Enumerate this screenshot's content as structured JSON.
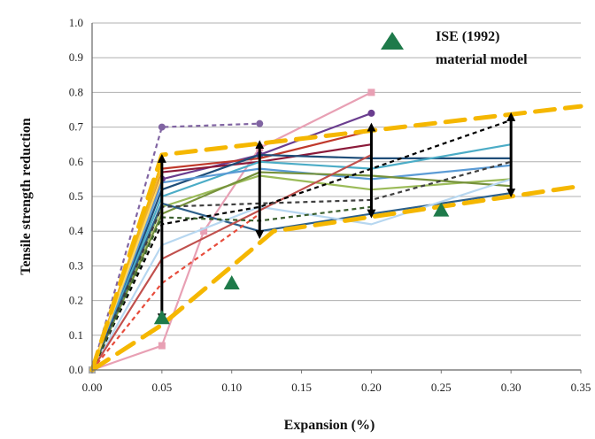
{
  "chart_data": {
    "type": "line",
    "xlabel": "Expansion (%)",
    "ylabel": "Tensile strength reduction",
    "xlim": [
      0,
      0.35
    ],
    "ylim": [
      0,
      1.0
    ],
    "x_ticks": [
      "0.00",
      "0.05",
      "0.10",
      "0.15",
      "0.20",
      "0.25",
      "0.30",
      "0.35"
    ],
    "y_ticks": [
      "0.0",
      "0.1",
      "0.2",
      "0.3",
      "0.4",
      "0.5",
      "0.6",
      "0.7",
      "0.8",
      "0.9",
      "1.0"
    ],
    "grid": "horizontal",
    "legend": {
      "position": "top-right",
      "entries": [
        {
          "marker": "triangle",
          "color": "#1e7a4a",
          "label_lines": [
            "ISE (1992)",
            "material model"
          ]
        }
      ]
    },
    "series": [
      {
        "color": "#8064a2",
        "style": "dashed",
        "marker": "circle",
        "points": [
          [
            0,
            0
          ],
          [
            0.05,
            0.7
          ],
          [
            0.12,
            0.71
          ]
        ]
      },
      {
        "color": "#e8a0b4",
        "style": "solid",
        "marker": "square",
        "points": [
          [
            0,
            0
          ],
          [
            0.05,
            0.07
          ],
          [
            0.08,
            0.4
          ],
          [
            0.12,
            0.64
          ],
          [
            0.2,
            0.8
          ]
        ]
      },
      {
        "color": "#6a3d8f",
        "style": "solid",
        "marker": "circle",
        "points": [
          [
            0,
            0
          ],
          [
            0.05,
            0.55
          ],
          [
            0.12,
            0.62
          ],
          [
            0.2,
            0.74
          ]
        ]
      },
      {
        "color": "#c0392b",
        "style": "solid",
        "marker": "none",
        "points": [
          [
            0,
            0
          ],
          [
            0.05,
            0.58
          ],
          [
            0.12,
            0.61
          ],
          [
            0.2,
            0.69
          ]
        ]
      },
      {
        "color": "#8b1a3a",
        "style": "solid",
        "marker": "none",
        "points": [
          [
            0,
            0
          ],
          [
            0.05,
            0.57
          ],
          [
            0.12,
            0.6
          ],
          [
            0.2,
            0.65
          ]
        ]
      },
      {
        "color": "#1f4e79",
        "style": "solid",
        "marker": "none",
        "points": [
          [
            0,
            0
          ],
          [
            0.05,
            0.52
          ],
          [
            0.12,
            0.62
          ],
          [
            0.2,
            0.61
          ],
          [
            0.3,
            0.61
          ]
        ]
      },
      {
        "color": "#4bacc6",
        "style": "solid",
        "marker": "none",
        "points": [
          [
            0,
            0
          ],
          [
            0.05,
            0.5
          ],
          [
            0.12,
            0.6
          ],
          [
            0.2,
            0.58
          ],
          [
            0.3,
            0.65
          ]
        ]
      },
      {
        "color": "#5b9bd5",
        "style": "solid",
        "marker": "none",
        "points": [
          [
            0,
            0
          ],
          [
            0.05,
            0.54
          ],
          [
            0.12,
            0.58
          ],
          [
            0.2,
            0.55
          ],
          [
            0.3,
            0.59
          ]
        ]
      },
      {
        "color": "#9bbb59",
        "style": "solid",
        "marker": "none",
        "points": [
          [
            0,
            0
          ],
          [
            0.05,
            0.47
          ],
          [
            0.12,
            0.56
          ],
          [
            0.2,
            0.52
          ],
          [
            0.3,
            0.55
          ]
        ]
      },
      {
        "color": "#76923c",
        "style": "solid",
        "marker": "none",
        "points": [
          [
            0,
            0
          ],
          [
            0.05,
            0.45
          ],
          [
            0.12,
            0.57
          ],
          [
            0.2,
            0.56
          ],
          [
            0.3,
            0.53
          ]
        ]
      },
      {
        "color": "#2c5f8a",
        "style": "solid",
        "marker": "none",
        "points": [
          [
            0,
            0
          ],
          [
            0.05,
            0.48
          ],
          [
            0.12,
            0.4
          ],
          [
            0.2,
            0.45
          ],
          [
            0.3,
            0.51
          ]
        ]
      },
      {
        "color": "#b7d7f0",
        "style": "solid",
        "marker": "none",
        "points": [
          [
            0,
            0
          ],
          [
            0.05,
            0.36
          ],
          [
            0.12,
            0.47
          ],
          [
            0.2,
            0.42
          ],
          [
            0.3,
            0.55
          ]
        ]
      },
      {
        "color": "#c0504d",
        "style": "solid",
        "marker": "none",
        "points": [
          [
            0,
            0
          ],
          [
            0.05,
            0.32
          ],
          [
            0.12,
            0.46
          ],
          [
            0.2,
            0.62
          ]
        ]
      },
      {
        "color": "#e74c3c",
        "style": "dashed",
        "marker": "none",
        "points": [
          [
            0,
            0
          ],
          [
            0.05,
            0.25
          ],
          [
            0.12,
            0.45
          ]
        ]
      },
      {
        "color": "#000000",
        "style": "dashed",
        "marker": "none",
        "points": [
          [
            0,
            0
          ],
          [
            0.05,
            0.42
          ],
          [
            0.12,
            0.47
          ],
          [
            0.2,
            0.58
          ],
          [
            0.3,
            0.72
          ]
        ]
      },
      {
        "color": "#404040",
        "style": "dashed",
        "marker": "none",
        "points": [
          [
            0,
            0
          ],
          [
            0.05,
            0.47
          ],
          [
            0.12,
            0.48
          ],
          [
            0.2,
            0.49
          ],
          [
            0.3,
            0.6
          ]
        ]
      },
      {
        "color": "#3a5f2e",
        "style": "dashed",
        "marker": "none",
        "points": [
          [
            0,
            0
          ],
          [
            0.05,
            0.44
          ],
          [
            0.12,
            0.43
          ],
          [
            0.2,
            0.47
          ]
        ]
      },
      {
        "color": "#f5b700",
        "style": "solid",
        "marker": "none",
        "points": [
          [
            0,
            0
          ],
          [
            0.05,
            0.6
          ]
        ]
      },
      {
        "color": "#f0b429",
        "style": "solid",
        "marker": "none",
        "points": [
          [
            0,
            0
          ],
          [
            0.05,
            0.58
          ]
        ]
      },
      {
        "color": "#ffd966",
        "style": "solid",
        "marker": "none",
        "points": [
          [
            0,
            0
          ],
          [
            0.05,
            0.56
          ]
        ]
      }
    ],
    "bounds": [
      {
        "name": "upper bound",
        "color": "#f5b700",
        "style": "dashed",
        "points": [
          [
            0,
            0
          ],
          [
            0.05,
            0.62
          ],
          [
            0.35,
            0.76
          ]
        ]
      },
      {
        "name": "lower bound",
        "color": "#f5b700",
        "style": "dashed",
        "points": [
          [
            0,
            0
          ],
          [
            0.05,
            0.13
          ],
          [
            0.13,
            0.4
          ],
          [
            0.35,
            0.53
          ]
        ]
      }
    ],
    "ise_points": [
      [
        0.05,
        0.15
      ],
      [
        0.1,
        0.25
      ],
      [
        0.25,
        0.46
      ]
    ],
    "range_arrows": [
      {
        "x": 0.05,
        "y_low": 0.15,
        "y_high": 0.61
      },
      {
        "x": 0.12,
        "y_low": 0.39,
        "y_high": 0.65
      },
      {
        "x": 0.2,
        "y_low": 0.45,
        "y_high": 0.7
      },
      {
        "x": 0.3,
        "y_low": 0.51,
        "y_high": 0.73
      }
    ]
  }
}
